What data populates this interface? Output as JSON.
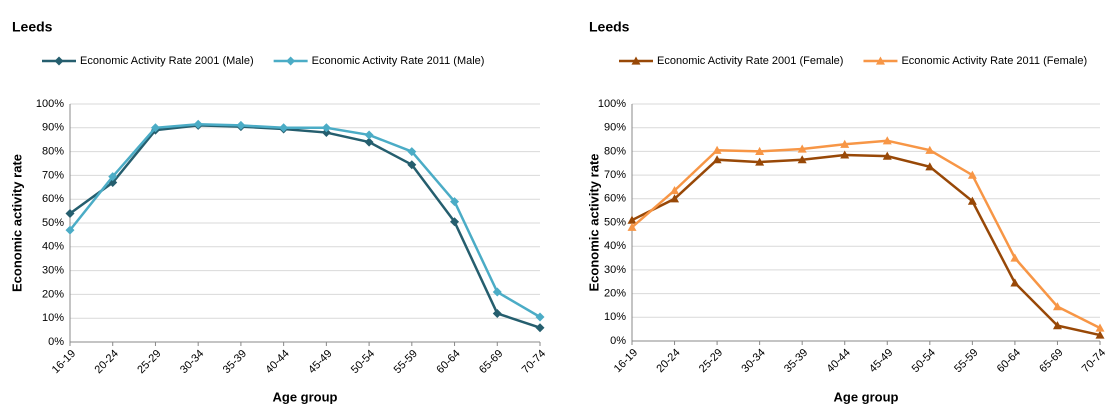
{
  "chart_data": [
    {
      "type": "line",
      "title": "Leeds",
      "x_label": "Age group",
      "y_label": "Economic activity rate",
      "categories": [
        "16-19",
        "20-24",
        "25-29",
        "30-34",
        "35-39",
        "40-44",
        "45-49",
        "50-54",
        "55-59",
        "60-64",
        "65-69",
        "70-74"
      ],
      "series": [
        {
          "name": "Economic Activity Rate 2001 (Male)",
          "color": "#255e6e",
          "marker": "diamond",
          "values": [
            54,
            67,
            89,
            91,
            90.5,
            89.5,
            88,
            84,
            74.5,
            50.5,
            12,
            6
          ]
        },
        {
          "name": "Economic Activity Rate 2011 (Male)",
          "color": "#4bacc6",
          "marker": "diamond",
          "values": [
            47,
            69.5,
            90,
            91.5,
            91,
            90,
            90,
            87,
            80,
            59,
            21,
            10.5
          ]
        }
      ],
      "ylim": [
        0,
        100
      ],
      "yticks": [
        {
          "value": 0,
          "label": "0%"
        },
        {
          "value": 10,
          "label": "10%"
        },
        {
          "value": 20,
          "label": "20%"
        },
        {
          "value": 30,
          "label": "30%"
        },
        {
          "value": 40,
          "label": "40%"
        },
        {
          "value": 50,
          "label": "50%"
        },
        {
          "value": 60,
          "label": "60%"
        },
        {
          "value": 70,
          "label": "70%"
        },
        {
          "value": 80,
          "label": "80%"
        },
        {
          "value": 90,
          "label": "90%"
        },
        {
          "value": 100,
          "label": "100%"
        }
      ],
      "grid": true,
      "legend": "top"
    },
    {
      "type": "line",
      "title": "Leeds",
      "x_label": "Age group",
      "y_label": "Economic activity rate",
      "categories": [
        "16-19",
        "20-24",
        "25-29",
        "30-34",
        "35-39",
        "40-44",
        "45-49",
        "50-54",
        "55-59",
        "60-64",
        "65-69",
        "70-74"
      ],
      "series": [
        {
          "name": "Economic Activity Rate 2001 (Female)",
          "color": "#984807",
          "marker": "triangle",
          "values": [
            51,
            60,
            76.5,
            75.5,
            76.5,
            78.5,
            78,
            73.5,
            59,
            24.5,
            6.5,
            2.5
          ]
        },
        {
          "name": "Economic Activity Rate 2011 (Female)",
          "color": "#f79646",
          "marker": "triangle",
          "values": [
            48,
            63.5,
            80.5,
            80,
            81,
            83,
            84.5,
            80.5,
            70,
            35,
            14.5,
            5.5
          ]
        }
      ],
      "ylim": [
        0,
        100
      ],
      "yticks": [
        {
          "value": 0,
          "label": "0%"
        },
        {
          "value": 10,
          "label": "10%"
        },
        {
          "value": 20,
          "label": "20%"
        },
        {
          "value": 30,
          "label": "30%"
        },
        {
          "value": 40,
          "label": "40%"
        },
        {
          "value": 50,
          "label": "50%"
        },
        {
          "value": 60,
          "label": "60%"
        },
        {
          "value": 70,
          "label": "70%"
        },
        {
          "value": 80,
          "label": "80%"
        },
        {
          "value": 90,
          "label": "90%"
        },
        {
          "value": 100,
          "label": "100%"
        }
      ],
      "grid": true,
      "legend": "top"
    }
  ]
}
